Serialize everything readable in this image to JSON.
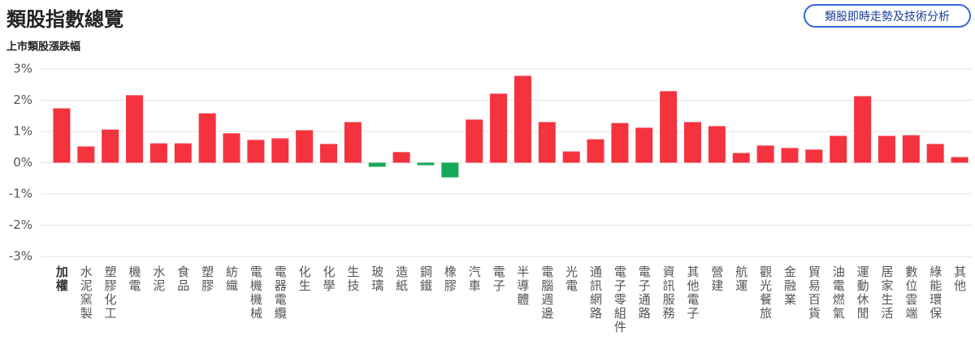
{
  "header": {
    "title": "類股指數總覽",
    "button": "類股即時走勢及技術分析"
  },
  "chart_data": {
    "type": "bar",
    "title": "上市類股漲跌幅",
    "categories": [
      "加權",
      "水泥窯製",
      "塑膠化工",
      "機電",
      "水泥",
      "食品",
      "塑膠",
      "紡織",
      "電機機械",
      "電器電纜",
      "化生",
      "化學",
      "生技",
      "玻璃",
      "造紙",
      "鋼鐵",
      "橡膠",
      "汽車",
      "電子",
      "半導體",
      "電腦週邊",
      "光電",
      "通訊網路",
      "電子零組件",
      "電子通路",
      "資訊服務",
      "其他電子",
      "營建",
      "航運",
      "觀光餐旅",
      "金融業",
      "貿易百貨",
      "油電燃氣",
      "運動休閒",
      "居家生活",
      "數位雲端",
      "綠能環保",
      "其他"
    ],
    "values": [
      1.74,
      0.52,
      1.06,
      2.16,
      0.62,
      0.62,
      1.58,
      0.94,
      0.73,
      0.78,
      1.04,
      0.6,
      1.3,
      -0.13,
      0.34,
      -0.08,
      -0.47,
      1.38,
      2.21,
      2.78,
      1.3,
      0.36,
      0.75,
      1.27,
      1.12,
      2.29,
      1.3,
      1.17,
      0.31,
      0.55,
      0.47,
      0.42,
      0.86,
      2.13,
      0.86,
      0.88,
      0.6,
      0.18
    ],
    "colors": {
      "up": "#f5333f",
      "down": "#16a957"
    },
    "ylim": [
      -3,
      3
    ],
    "yticks": [
      {
        "value": -3,
        "label": "-3%"
      },
      {
        "value": -2,
        "label": "-2%"
      },
      {
        "value": -1,
        "label": "-1%"
      },
      {
        "value": 0,
        "label": "0%"
      },
      {
        "value": 1,
        "label": "1%"
      },
      {
        "value": 2,
        "label": "2%"
      },
      {
        "value": 3,
        "label": "3%"
      }
    ],
    "grid": true
  }
}
